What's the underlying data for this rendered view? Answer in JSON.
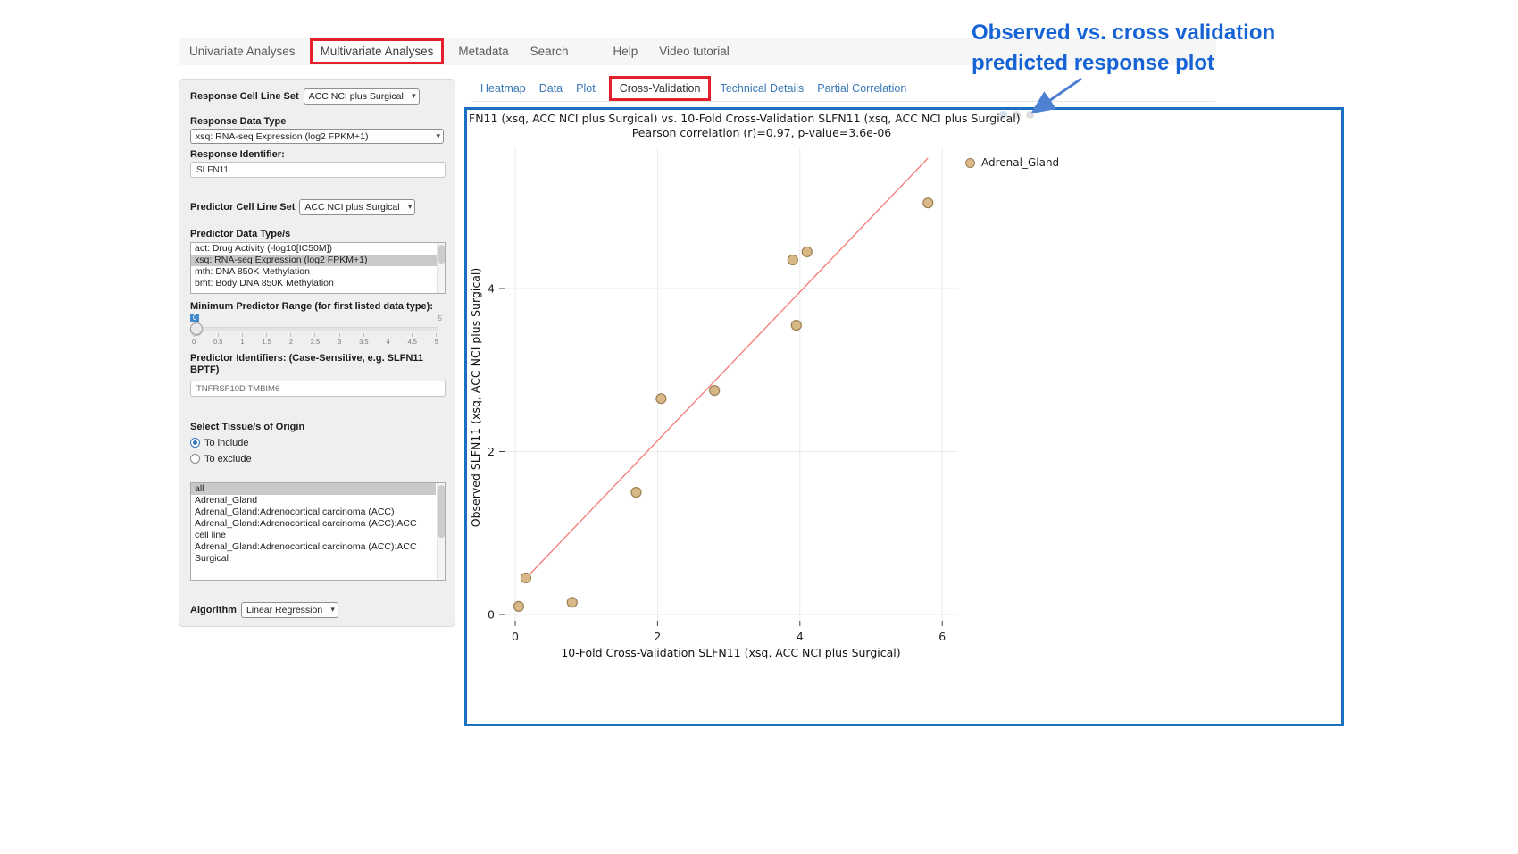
{
  "nav": {
    "items": [
      {
        "label": "Univariate Analyses",
        "highlighted": false
      },
      {
        "label": "Multivariate Analyses",
        "highlighted": true
      },
      {
        "label": "Metadata",
        "highlighted": false
      },
      {
        "label": "Search",
        "highlighted": false
      },
      {
        "label": "Help",
        "highlighted": false
      },
      {
        "label": "Video tutorial",
        "highlighted": false
      }
    ]
  },
  "sidebar": {
    "response_cell_line_set": {
      "label": "Response Cell Line Set",
      "value": "ACC NCI plus Surgical"
    },
    "response_data_type": {
      "label": "Response Data Type",
      "value": "xsq: RNA-seq Expression (log2 FPKM+1)"
    },
    "response_identifier": {
      "label": "Response Identifier:",
      "value": "SLFN11"
    },
    "predictor_cell_line_set": {
      "label": "Predictor Cell Line Set",
      "value": "ACC NCI plus Surgical"
    },
    "predictor_data_types": {
      "label": "Predictor Data Type/s",
      "options": [
        "act: Drug Activity (-log10[IC50M])",
        "xsq: RNA-seq Expression (log2 FPKM+1)",
        "mth: DNA 850K Methylation",
        "bmt: Body DNA 850K Methylation"
      ],
      "selected_index": 1
    },
    "min_predictor_range": {
      "label": "Minimum Predictor Range (for first listed data type):",
      "value": "0",
      "max": "5",
      "ticks": [
        "0",
        "0.5",
        "1",
        "1.5",
        "2",
        "2.5",
        "3",
        "3.5",
        "4",
        "4.5",
        "5"
      ]
    },
    "predictor_identifiers": {
      "label": "Predictor Identifiers: (Case-Sensitive, e.g. SLFN11 BPTF)",
      "value": "TNFRSF10D TMBIM6"
    },
    "tissue_origin": {
      "label": "Select Tissue/s of Origin",
      "radio_include": "To include",
      "radio_exclude": "To exclude",
      "include_checked": true,
      "options": [
        "all",
        "Adrenal_Gland",
        "Adrenal_Gland:Adrenocortical carcinoma (ACC)",
        "Adrenal_Gland:Adrenocortical carcinoma (ACC):ACC cell line",
        "Adrenal_Gland:Adrenocortical carcinoma (ACC):ACC Surgical"
      ],
      "selected_index": 0
    },
    "algorithm": {
      "label": "Algorithm",
      "value": "Linear Regression"
    }
  },
  "subtabs": [
    {
      "label": "Heatmap",
      "active": false
    },
    {
      "label": "Data",
      "active": false
    },
    {
      "label": "Plot",
      "active": false
    },
    {
      "label": "Cross-Validation",
      "active": true
    },
    {
      "label": "Technical Details",
      "active": false
    },
    {
      "label": "Partial Correlation",
      "active": false
    }
  ],
  "annotation": {
    "line1": "Observed vs. cross validation",
    "line2": "predicted response plot"
  },
  "colors": {
    "highlight_red": "#e4202c",
    "plot_border_blue": "#1b6fbf",
    "annotation_blue": "#1563d5",
    "link_blue": "#3878b8",
    "point_fill": "#d9b888",
    "point_stroke": "#9c7e52",
    "regression_line": "#f48080",
    "gridline": "#ebebeb"
  },
  "chart_data": {
    "type": "scatter",
    "title": "FN11 (xsq, ACC NCI plus Surgical) vs. 10-Fold Cross-Validation SLFN11 (xsq, ACC NCI plus Surgical)",
    "subtitle": "Pearson correlation (r)=0.97, p-value=3.6e-06",
    "xlabel": "10-Fold Cross-Validation SLFN11 (xsq, ACC NCI plus Surgical)",
    "ylabel": "Observed SLFN11 (xsq, ACC NCI plus Surgical)",
    "xlim": [
      -0.3,
      6.3
    ],
    "ylim": [
      -0.35,
      5.75
    ],
    "xticks": [
      0,
      2,
      4,
      6
    ],
    "yticks": [
      0,
      2,
      4
    ],
    "grid": true,
    "legend_position": "right",
    "legend": [
      {
        "label": "Adrenal_Gland",
        "color": "#d9b888"
      }
    ],
    "points": [
      {
        "x": 0.05,
        "y": 0.1
      },
      {
        "x": 0.15,
        "y": 0.45
      },
      {
        "x": 0.8,
        "y": 0.15
      },
      {
        "x": 1.7,
        "y": 1.5
      },
      {
        "x": 2.05,
        "y": 2.65
      },
      {
        "x": 2.8,
        "y": 2.75
      },
      {
        "x": 3.95,
        "y": 3.55
      },
      {
        "x": 3.9,
        "y": 4.35
      },
      {
        "x": 4.1,
        "y": 4.45
      },
      {
        "x": 5.8,
        "y": 5.05
      }
    ],
    "regression_line": {
      "x1": 0.1,
      "y1": 0.4,
      "x2": 5.8,
      "y2": 5.6
    }
  }
}
